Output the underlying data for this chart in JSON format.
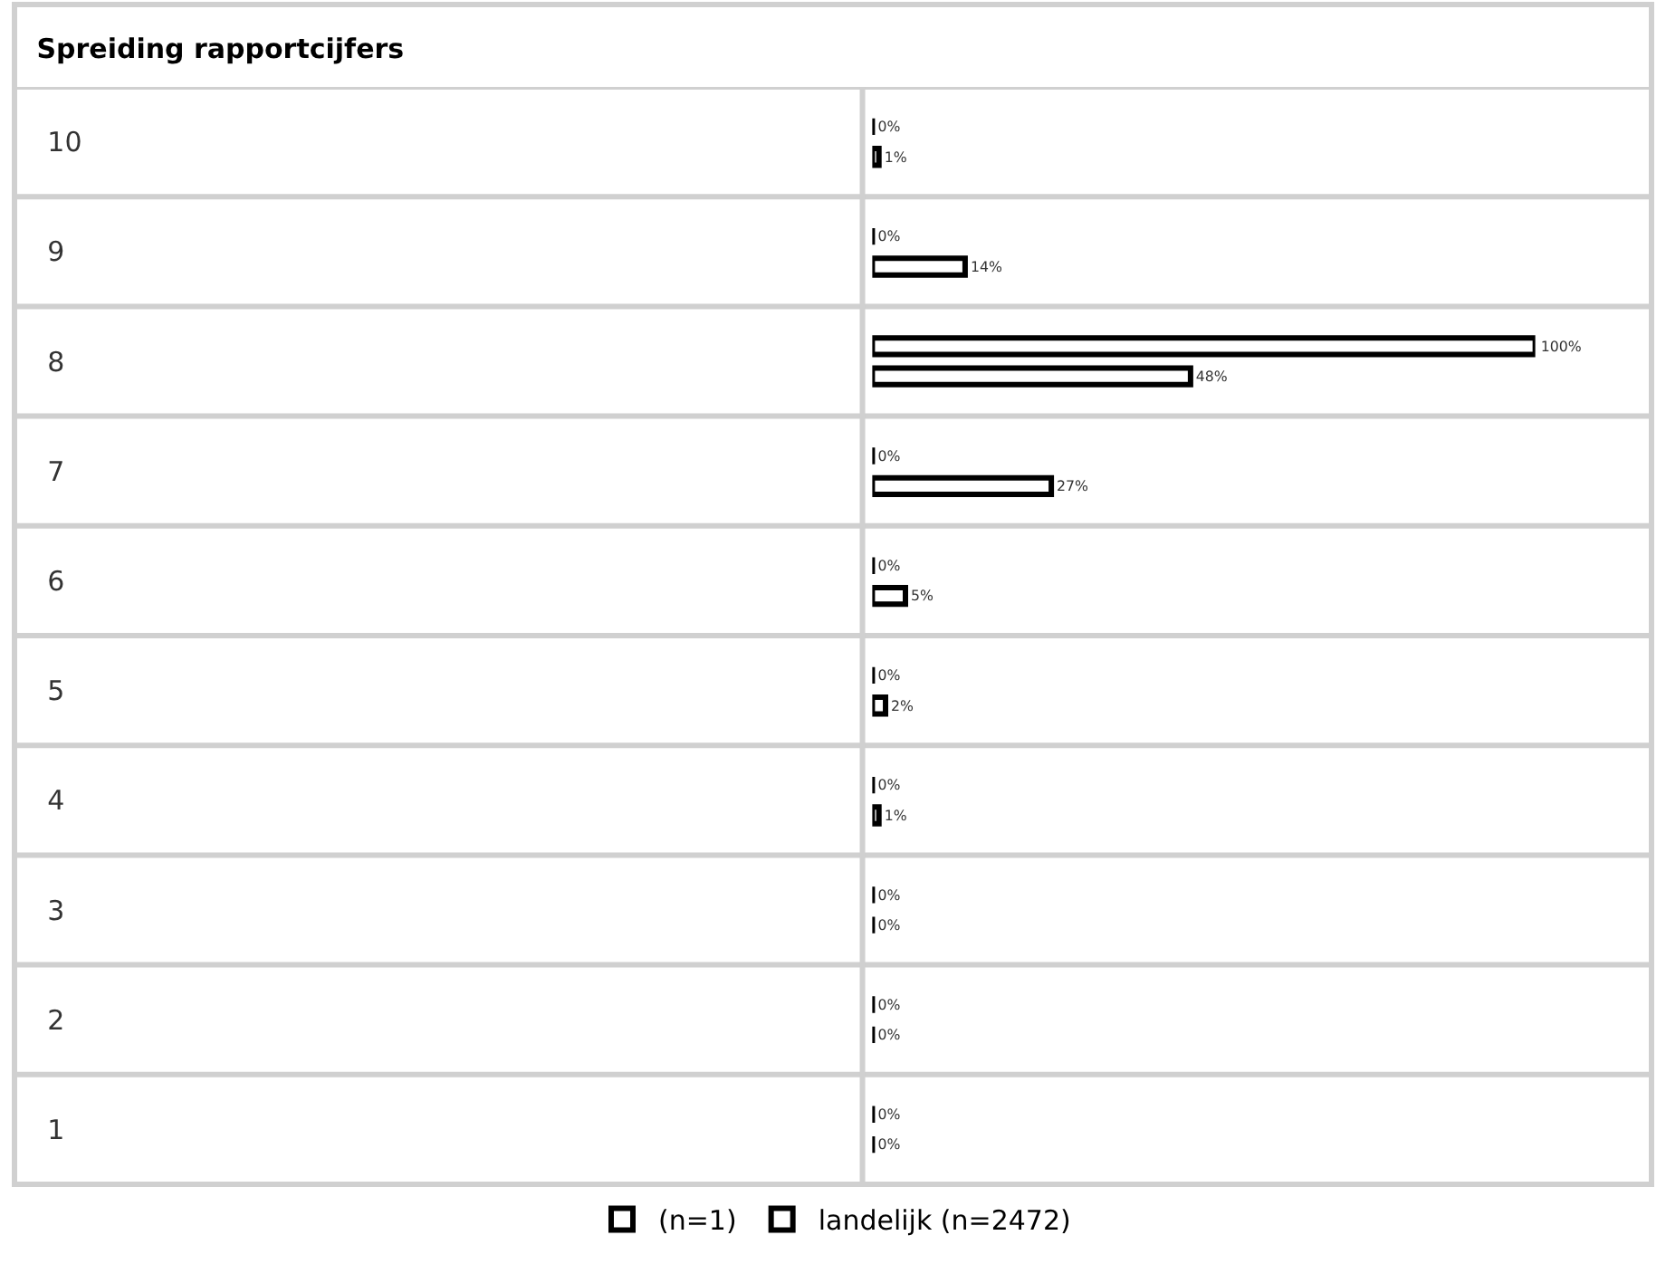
{
  "chart_data": {
    "type": "bar",
    "orientation": "horizontal",
    "title": "Spreiding rapportcijfers",
    "categories": [
      "10",
      "9",
      "8",
      "7",
      "6",
      "5",
      "4",
      "3",
      "2",
      "1"
    ],
    "series": [
      {
        "name": "(n=1)",
        "color": "#000000",
        "values": [
          0,
          0,
          100,
          0,
          0,
          0,
          0,
          0,
          0,
          0
        ],
        "value_labels": [
          "0%",
          "0%",
          "100%",
          "0%",
          "0%",
          "0%",
          "0%",
          "0%",
          "0%",
          "0%"
        ]
      },
      {
        "name": "landelijk (n=2472)",
        "color": "#000000",
        "values": [
          1,
          14,
          48,
          27,
          5,
          2,
          1,
          0,
          0,
          0
        ],
        "value_labels": [
          "1%",
          "14%",
          "48%",
          "27%",
          "5%",
          "2%",
          "1%",
          "0%",
          "0%",
          "0%"
        ]
      }
    ],
    "legend": "bottom",
    "grid": "y"
  }
}
